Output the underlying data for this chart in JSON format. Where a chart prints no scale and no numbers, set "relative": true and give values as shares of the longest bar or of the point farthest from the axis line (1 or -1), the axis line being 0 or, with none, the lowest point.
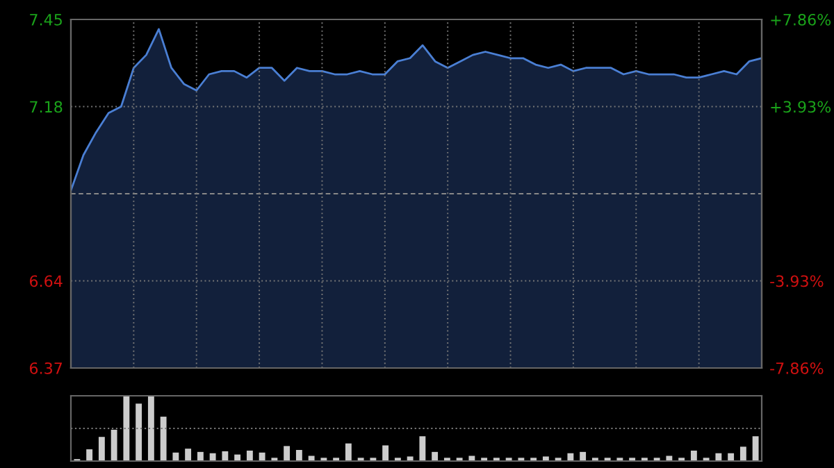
{
  "chart_data": [
    {
      "type": "area",
      "categories": [
        null,
        null,
        null,
        null,
        null,
        null,
        null,
        null,
        null,
        null,
        null,
        null,
        null,
        null,
        null,
        null,
        null,
        null,
        null,
        null,
        null,
        null,
        null,
        null,
        null,
        null,
        null,
        null,
        null,
        null,
        null,
        null,
        null,
        null,
        null,
        null,
        null,
        null,
        null,
        null,
        null,
        null,
        null,
        null,
        null,
        null,
        null,
        null,
        null,
        null,
        null,
        null,
        null,
        null,
        null,
        null
      ],
      "series": [
        {
          "color": "#4a7fd4",
          "values": [
            6.92,
            7.03,
            7.1,
            7.16,
            7.18,
            7.3,
            7.34,
            7.42,
            7.3,
            7.25,
            7.23,
            7.28,
            7.29,
            7.29,
            7.27,
            7.3,
            7.3,
            7.26,
            7.3,
            7.29,
            7.29,
            7.28,
            7.28,
            7.29,
            7.28,
            7.28,
            7.32,
            7.33,
            7.37,
            7.32,
            7.3,
            7.32,
            7.34,
            7.35,
            7.34,
            7.33,
            7.33,
            7.31,
            7.3,
            7.31,
            7.29,
            7.3,
            7.3,
            7.3,
            7.28,
            7.29,
            7.28,
            7.28,
            7.28,
            7.27,
            7.27,
            7.28,
            7.29,
            7.28,
            7.32,
            7.33
          ]
        }
      ],
      "ylim": [
        6.37,
        7.45
      ],
      "yticks": [
        6.37,
        6.64,
        7.18,
        7.45
      ],
      "y2lim": [
        -7.86,
        7.86
      ],
      "y2ticks": [
        {
          "value": -7.86,
          "label": "-7.86%"
        },
        {
          "value": -3.93,
          "label": "-3.93%"
        },
        {
          "value": 3.93,
          "label": "+3.93%"
        },
        {
          "value": 7.86,
          "label": "+7.86%"
        }
      ],
      "ref_lines": [
        {
          "axis": "y",
          "value": 6.91,
          "color": "#888888",
          "line_style": "dashed"
        }
      ],
      "grid": true,
      "legend": false
    },
    {
      "type": "bar",
      "relative": true,
      "categories": [
        null,
        null,
        null,
        null,
        null,
        null,
        null,
        null,
        null,
        null,
        null,
        null,
        null,
        null,
        null,
        null,
        null,
        null,
        null,
        null,
        null,
        null,
        null,
        null,
        null,
        null,
        null,
        null,
        null,
        null,
        null,
        null,
        null,
        null,
        null,
        null,
        null,
        null,
        null,
        null,
        null,
        null,
        null,
        null,
        null,
        null,
        null,
        null,
        null,
        null,
        null,
        null,
        null,
        null,
        null,
        null
      ],
      "series": [
        {
          "color": "#cccccc",
          "values": [
            0.03,
            0.18,
            0.37,
            0.48,
            1.0,
            0.88,
            1.0,
            0.68,
            0.13,
            0.19,
            0.14,
            0.12,
            0.15,
            0.1,
            0.16,
            0.13,
            0.05,
            0.23,
            0.17,
            0.08,
            0.05,
            0.05,
            0.27,
            0.05,
            0.05,
            0.24,
            0.05,
            0.07,
            0.38,
            0.14,
            0.05,
            0.05,
            0.08,
            0.05,
            0.05,
            0.05,
            0.05,
            0.05,
            0.07,
            0.05,
            0.12,
            0.14,
            0.05,
            0.05,
            0.05,
            0.05,
            0.05,
            0.05,
            0.08,
            0.05,
            0.16,
            0.05,
            0.12,
            0.12,
            0.22,
            0.38
          ]
        }
      ],
      "ref_lines": [
        {
          "axis": "y",
          "value": 0.5,
          "color": "#777777",
          "line_style": "dotted"
        }
      ],
      "legend": false
    }
  ]
}
